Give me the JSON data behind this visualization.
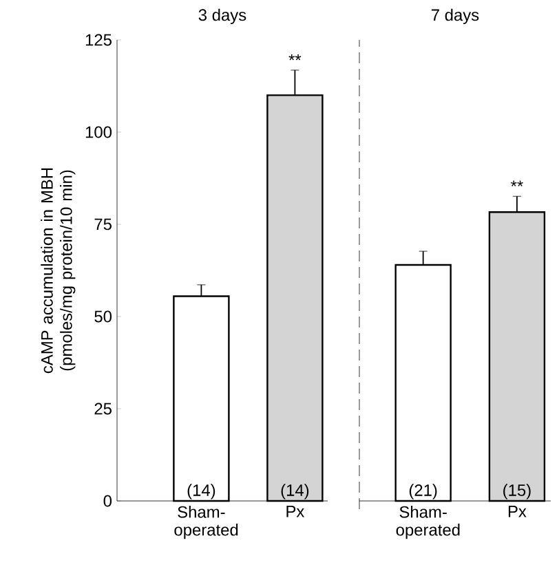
{
  "chart_data": [
    {
      "type": "bar",
      "title": "3 days",
      "ylabel": "cAMP accumulation in MBH (pmoles/mg protein/10 min)",
      "categories": [
        "Sham-operated",
        "Px"
      ],
      "values": [
        55.5,
        110
      ],
      "colors": [
        "#ffffff",
        "#d4d4d4"
      ],
      "errors": [
        [
          55.5,
          58.6
        ],
        [
          110,
          116.8
        ]
      ],
      "ylim": [
        0,
        125
      ],
      "yticks": [
        0,
        25,
        50,
        75,
        100,
        125
      ],
      "annotations": [
        "(14)",
        "(14)",
        "**"
      ]
    },
    {
      "type": "bar",
      "title": "7 days",
      "categories": [
        "Sham-operated",
        "Px"
      ],
      "values": [
        64,
        78.3
      ],
      "colors": [
        "#ffffff",
        "#d4d4d4"
      ],
      "errors": [
        [
          64,
          67.7
        ],
        [
          78.3,
          82.6
        ]
      ],
      "ylim": [
        0,
        125
      ],
      "yticks": [
        0,
        25,
        50,
        75,
        100,
        125
      ],
      "tick_labels": "x",
      "annotations": [
        "(21)",
        "(15)",
        "**"
      ]
    }
  ]
}
